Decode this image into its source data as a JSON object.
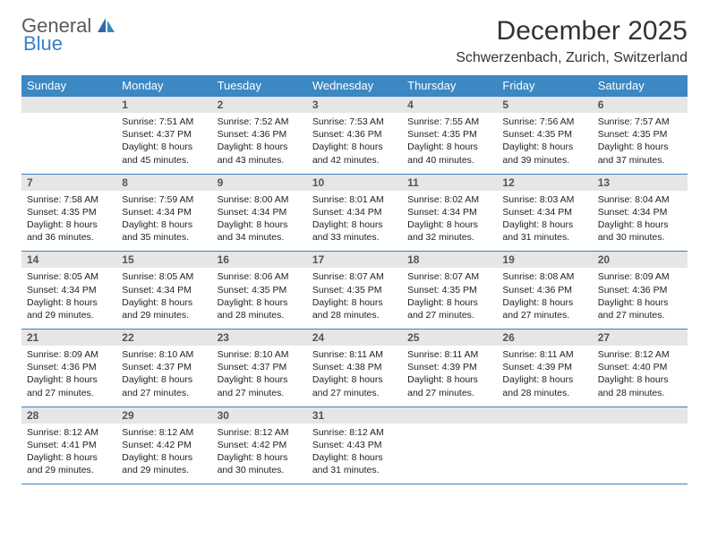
{
  "brand": {
    "line1": "General",
    "line2": "Blue",
    "color_gray": "#5a5a5a",
    "color_blue": "#3b7fc4"
  },
  "title": "December 2025",
  "location": "Schwerzenbach, Zurich, Switzerland",
  "dow_header_bg": "#3b88c3",
  "dow_header_fg": "#ffffff",
  "rule_color": "#3b7fc4",
  "daynum_bg": "#e6e6e6",
  "daynum_fg": "#555555",
  "body_fontsize_pt": 10.5,
  "days_of_week": [
    "Sunday",
    "Monday",
    "Tuesday",
    "Wednesday",
    "Thursday",
    "Friday",
    "Saturday"
  ],
  "weeks": [
    [
      {
        "num": "",
        "sunrise": "",
        "sunset": "",
        "daylight": ""
      },
      {
        "num": "1",
        "sunrise": "Sunrise: 7:51 AM",
        "sunset": "Sunset: 4:37 PM",
        "daylight": "Daylight: 8 hours and 45 minutes."
      },
      {
        "num": "2",
        "sunrise": "Sunrise: 7:52 AM",
        "sunset": "Sunset: 4:36 PM",
        "daylight": "Daylight: 8 hours and 43 minutes."
      },
      {
        "num": "3",
        "sunrise": "Sunrise: 7:53 AM",
        "sunset": "Sunset: 4:36 PM",
        "daylight": "Daylight: 8 hours and 42 minutes."
      },
      {
        "num": "4",
        "sunrise": "Sunrise: 7:55 AM",
        "sunset": "Sunset: 4:35 PM",
        "daylight": "Daylight: 8 hours and 40 minutes."
      },
      {
        "num": "5",
        "sunrise": "Sunrise: 7:56 AM",
        "sunset": "Sunset: 4:35 PM",
        "daylight": "Daylight: 8 hours and 39 minutes."
      },
      {
        "num": "6",
        "sunrise": "Sunrise: 7:57 AM",
        "sunset": "Sunset: 4:35 PM",
        "daylight": "Daylight: 8 hours and 37 minutes."
      }
    ],
    [
      {
        "num": "7",
        "sunrise": "Sunrise: 7:58 AM",
        "sunset": "Sunset: 4:35 PM",
        "daylight": "Daylight: 8 hours and 36 minutes."
      },
      {
        "num": "8",
        "sunrise": "Sunrise: 7:59 AM",
        "sunset": "Sunset: 4:34 PM",
        "daylight": "Daylight: 8 hours and 35 minutes."
      },
      {
        "num": "9",
        "sunrise": "Sunrise: 8:00 AM",
        "sunset": "Sunset: 4:34 PM",
        "daylight": "Daylight: 8 hours and 34 minutes."
      },
      {
        "num": "10",
        "sunrise": "Sunrise: 8:01 AM",
        "sunset": "Sunset: 4:34 PM",
        "daylight": "Daylight: 8 hours and 33 minutes."
      },
      {
        "num": "11",
        "sunrise": "Sunrise: 8:02 AM",
        "sunset": "Sunset: 4:34 PM",
        "daylight": "Daylight: 8 hours and 32 minutes."
      },
      {
        "num": "12",
        "sunrise": "Sunrise: 8:03 AM",
        "sunset": "Sunset: 4:34 PM",
        "daylight": "Daylight: 8 hours and 31 minutes."
      },
      {
        "num": "13",
        "sunrise": "Sunrise: 8:04 AM",
        "sunset": "Sunset: 4:34 PM",
        "daylight": "Daylight: 8 hours and 30 minutes."
      }
    ],
    [
      {
        "num": "14",
        "sunrise": "Sunrise: 8:05 AM",
        "sunset": "Sunset: 4:34 PM",
        "daylight": "Daylight: 8 hours and 29 minutes."
      },
      {
        "num": "15",
        "sunrise": "Sunrise: 8:05 AM",
        "sunset": "Sunset: 4:34 PM",
        "daylight": "Daylight: 8 hours and 29 minutes."
      },
      {
        "num": "16",
        "sunrise": "Sunrise: 8:06 AM",
        "sunset": "Sunset: 4:35 PM",
        "daylight": "Daylight: 8 hours and 28 minutes."
      },
      {
        "num": "17",
        "sunrise": "Sunrise: 8:07 AM",
        "sunset": "Sunset: 4:35 PM",
        "daylight": "Daylight: 8 hours and 28 minutes."
      },
      {
        "num": "18",
        "sunrise": "Sunrise: 8:07 AM",
        "sunset": "Sunset: 4:35 PM",
        "daylight": "Daylight: 8 hours and 27 minutes."
      },
      {
        "num": "19",
        "sunrise": "Sunrise: 8:08 AM",
        "sunset": "Sunset: 4:36 PM",
        "daylight": "Daylight: 8 hours and 27 minutes."
      },
      {
        "num": "20",
        "sunrise": "Sunrise: 8:09 AM",
        "sunset": "Sunset: 4:36 PM",
        "daylight": "Daylight: 8 hours and 27 minutes."
      }
    ],
    [
      {
        "num": "21",
        "sunrise": "Sunrise: 8:09 AM",
        "sunset": "Sunset: 4:36 PM",
        "daylight": "Daylight: 8 hours and 27 minutes."
      },
      {
        "num": "22",
        "sunrise": "Sunrise: 8:10 AM",
        "sunset": "Sunset: 4:37 PM",
        "daylight": "Daylight: 8 hours and 27 minutes."
      },
      {
        "num": "23",
        "sunrise": "Sunrise: 8:10 AM",
        "sunset": "Sunset: 4:37 PM",
        "daylight": "Daylight: 8 hours and 27 minutes."
      },
      {
        "num": "24",
        "sunrise": "Sunrise: 8:11 AM",
        "sunset": "Sunset: 4:38 PM",
        "daylight": "Daylight: 8 hours and 27 minutes."
      },
      {
        "num": "25",
        "sunrise": "Sunrise: 8:11 AM",
        "sunset": "Sunset: 4:39 PM",
        "daylight": "Daylight: 8 hours and 27 minutes."
      },
      {
        "num": "26",
        "sunrise": "Sunrise: 8:11 AM",
        "sunset": "Sunset: 4:39 PM",
        "daylight": "Daylight: 8 hours and 28 minutes."
      },
      {
        "num": "27",
        "sunrise": "Sunrise: 8:12 AM",
        "sunset": "Sunset: 4:40 PM",
        "daylight": "Daylight: 8 hours and 28 minutes."
      }
    ],
    [
      {
        "num": "28",
        "sunrise": "Sunrise: 8:12 AM",
        "sunset": "Sunset: 4:41 PM",
        "daylight": "Daylight: 8 hours and 29 minutes."
      },
      {
        "num": "29",
        "sunrise": "Sunrise: 8:12 AM",
        "sunset": "Sunset: 4:42 PM",
        "daylight": "Daylight: 8 hours and 29 minutes."
      },
      {
        "num": "30",
        "sunrise": "Sunrise: 8:12 AM",
        "sunset": "Sunset: 4:42 PM",
        "daylight": "Daylight: 8 hours and 30 minutes."
      },
      {
        "num": "31",
        "sunrise": "Sunrise: 8:12 AM",
        "sunset": "Sunset: 4:43 PM",
        "daylight": "Daylight: 8 hours and 31 minutes."
      },
      {
        "num": "",
        "sunrise": "",
        "sunset": "",
        "daylight": ""
      },
      {
        "num": "",
        "sunrise": "",
        "sunset": "",
        "daylight": ""
      },
      {
        "num": "",
        "sunrise": "",
        "sunset": "",
        "daylight": ""
      }
    ]
  ]
}
